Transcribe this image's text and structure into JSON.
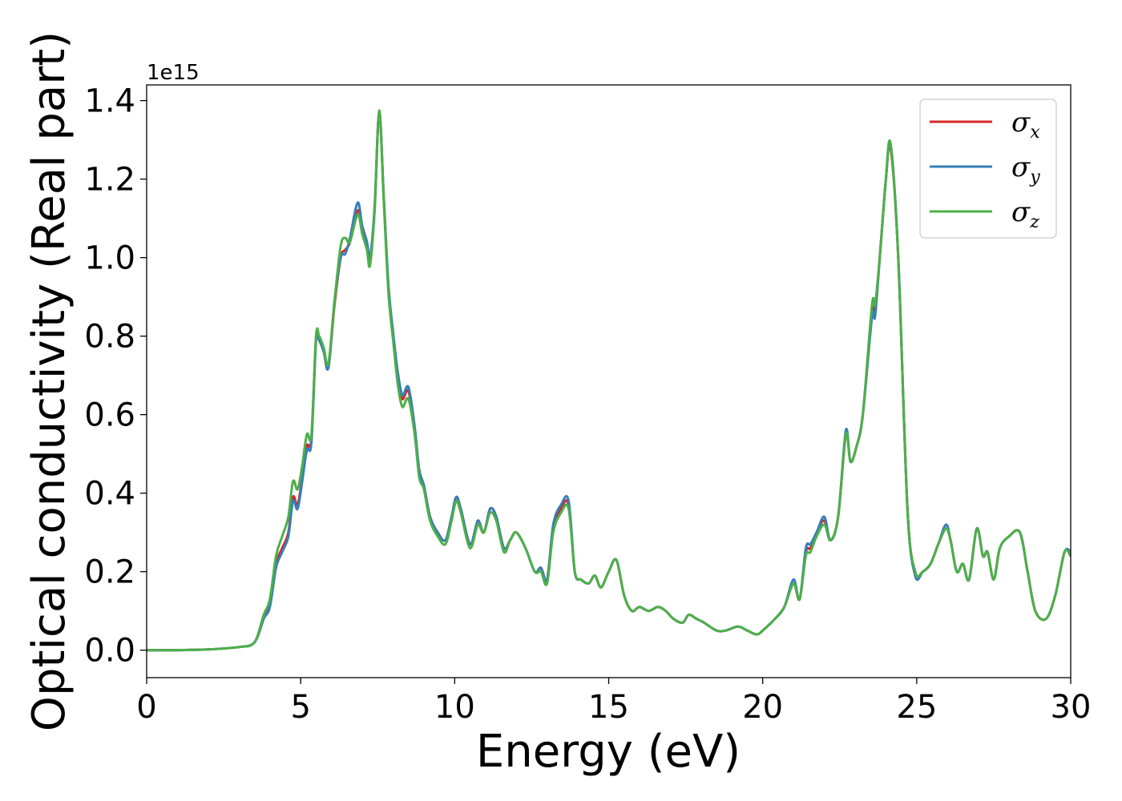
{
  "chart_data": {
    "type": "line",
    "xlabel": "Energy (eV)",
    "ylabel": "Optical conductivity (Real part)",
    "y_offset_label": "1e15",
    "xlim": [
      0,
      30
    ],
    "ylim": [
      -0.07,
      1.44
    ],
    "xticks": [
      0,
      5,
      10,
      15,
      20,
      25,
      30
    ],
    "xtick_labels": [
      "0",
      "5",
      "10",
      "15",
      "20",
      "25",
      "30"
    ],
    "yticks": [
      0.0,
      0.2,
      0.4,
      0.6,
      0.8,
      1.0,
      1.2,
      1.4
    ],
    "ytick_labels": [
      "0.0",
      "0.2",
      "0.4",
      "0.6",
      "0.8",
      "1.0",
      "1.2",
      "1.4"
    ],
    "grid": false,
    "legend_position": "top-right",
    "x": [
      0,
      1,
      2,
      3,
      3.5,
      3.8,
      4.0,
      4.2,
      4.4,
      4.6,
      4.75,
      4.9,
      5.05,
      5.2,
      5.35,
      5.5,
      5.6,
      5.75,
      5.9,
      6.1,
      6.3,
      6.45,
      6.6,
      6.85,
      7.0,
      7.15,
      7.25,
      7.4,
      7.55,
      7.7,
      7.85,
      8.0,
      8.15,
      8.3,
      8.5,
      8.7,
      8.85,
      9.0,
      9.2,
      9.45,
      9.7,
      9.9,
      10.05,
      10.2,
      10.5,
      10.75,
      10.95,
      11.15,
      11.35,
      11.6,
      11.8,
      12.0,
      12.3,
      12.6,
      12.8,
      13.0,
      13.2,
      13.45,
      13.7,
      13.9,
      14.1,
      14.35,
      14.55,
      14.75,
      15.0,
      15.25,
      15.5,
      15.75,
      16.0,
      16.3,
      16.6,
      16.85,
      17.1,
      17.4,
      17.6,
      17.85,
      18.1,
      18.5,
      18.8,
      19.2,
      19.5,
      19.8,
      20.0,
      20.4,
      20.7,
      21.0,
      21.2,
      21.4,
      21.55,
      21.75,
      22.0,
      22.2,
      22.45,
      22.7,
      22.85,
      23.05,
      23.25,
      23.55,
      23.65,
      23.8,
      24.0,
      24.15,
      24.4,
      24.7,
      24.95,
      25.2,
      25.45,
      25.7,
      25.95,
      26.1,
      26.3,
      26.5,
      26.7,
      26.95,
      27.15,
      27.3,
      27.5,
      27.7,
      28.0,
      28.35,
      28.6,
      28.85,
      29.2,
      29.5,
      29.8,
      30.0
    ],
    "series": [
      {
        "name": "σx",
        "color": "#d62728",
        "values": [
          0.0,
          0.0,
          0.002,
          0.008,
          0.02,
          0.08,
          0.12,
          0.22,
          0.26,
          0.3,
          0.39,
          0.37,
          0.44,
          0.52,
          0.54,
          0.8,
          0.79,
          0.76,
          0.72,
          0.88,
          1.0,
          1.02,
          1.04,
          1.12,
          1.08,
          1.04,
          1.0,
          1.12,
          1.37,
          1.15,
          0.92,
          0.8,
          0.7,
          0.64,
          0.66,
          0.56,
          0.45,
          0.42,
          0.34,
          0.3,
          0.28,
          0.34,
          0.39,
          0.36,
          0.27,
          0.32,
          0.3,
          0.36,
          0.34,
          0.26,
          0.28,
          0.3,
          0.26,
          0.2,
          0.21,
          0.18,
          0.31,
          0.36,
          0.37,
          0.2,
          0.18,
          0.17,
          0.19,
          0.16,
          0.2,
          0.23,
          0.14,
          0.1,
          0.11,
          0.1,
          0.11,
          0.1,
          0.08,
          0.07,
          0.09,
          0.08,
          0.07,
          0.05,
          0.05,
          0.06,
          0.05,
          0.04,
          0.05,
          0.08,
          0.11,
          0.17,
          0.13,
          0.25,
          0.26,
          0.3,
          0.33,
          0.28,
          0.34,
          0.55,
          0.48,
          0.52,
          0.6,
          0.86,
          0.86,
          1.0,
          1.2,
          1.28,
          1.0,
          0.36,
          0.2,
          0.2,
          0.22,
          0.27,
          0.31,
          0.28,
          0.2,
          0.22,
          0.18,
          0.31,
          0.24,
          0.25,
          0.18,
          0.26,
          0.29,
          0.3,
          0.2,
          0.1,
          0.08,
          0.14,
          0.25,
          0.24
        ]
      },
      {
        "name": "σy",
        "color": "#377eb8",
        "values": [
          0.0,
          0.0,
          0.002,
          0.008,
          0.02,
          0.08,
          0.11,
          0.21,
          0.25,
          0.29,
          0.38,
          0.36,
          0.43,
          0.51,
          0.53,
          0.79,
          0.79,
          0.76,
          0.72,
          0.89,
          1.0,
          1.01,
          1.05,
          1.14,
          1.08,
          1.04,
          1.0,
          1.13,
          1.37,
          1.15,
          0.93,
          0.81,
          0.71,
          0.65,
          0.67,
          0.57,
          0.46,
          0.42,
          0.34,
          0.3,
          0.28,
          0.34,
          0.39,
          0.36,
          0.27,
          0.33,
          0.3,
          0.36,
          0.34,
          0.26,
          0.28,
          0.3,
          0.26,
          0.2,
          0.21,
          0.18,
          0.32,
          0.37,
          0.38,
          0.2,
          0.18,
          0.17,
          0.19,
          0.16,
          0.2,
          0.23,
          0.14,
          0.1,
          0.11,
          0.1,
          0.11,
          0.1,
          0.08,
          0.07,
          0.09,
          0.08,
          0.07,
          0.05,
          0.05,
          0.06,
          0.05,
          0.04,
          0.05,
          0.08,
          0.11,
          0.18,
          0.13,
          0.26,
          0.27,
          0.3,
          0.34,
          0.28,
          0.34,
          0.56,
          0.48,
          0.52,
          0.6,
          0.85,
          0.85,
          1.0,
          1.2,
          1.29,
          1.0,
          0.36,
          0.19,
          0.2,
          0.22,
          0.27,
          0.32,
          0.28,
          0.2,
          0.22,
          0.18,
          0.31,
          0.24,
          0.25,
          0.18,
          0.26,
          0.29,
          0.3,
          0.2,
          0.1,
          0.08,
          0.14,
          0.25,
          0.25
        ]
      },
      {
        "name": "σz",
        "color": "#4daf4a",
        "values": [
          0.0,
          0.0,
          0.002,
          0.008,
          0.02,
          0.09,
          0.13,
          0.24,
          0.29,
          0.34,
          0.43,
          0.41,
          0.47,
          0.55,
          0.55,
          0.8,
          0.8,
          0.77,
          0.73,
          0.89,
          1.03,
          1.05,
          1.04,
          1.11,
          1.06,
          1.02,
          0.98,
          1.12,
          1.375,
          1.14,
          0.91,
          0.79,
          0.68,
          0.62,
          0.64,
          0.55,
          0.44,
          0.41,
          0.33,
          0.29,
          0.27,
          0.33,
          0.38,
          0.35,
          0.26,
          0.32,
          0.3,
          0.35,
          0.33,
          0.25,
          0.28,
          0.3,
          0.26,
          0.2,
          0.2,
          0.17,
          0.3,
          0.35,
          0.36,
          0.2,
          0.18,
          0.17,
          0.19,
          0.16,
          0.2,
          0.23,
          0.14,
          0.1,
          0.11,
          0.1,
          0.11,
          0.1,
          0.08,
          0.07,
          0.09,
          0.08,
          0.07,
          0.05,
          0.05,
          0.06,
          0.05,
          0.04,
          0.05,
          0.08,
          0.11,
          0.17,
          0.13,
          0.24,
          0.25,
          0.29,
          0.32,
          0.28,
          0.34,
          0.55,
          0.48,
          0.52,
          0.6,
          0.88,
          0.88,
          1.0,
          1.2,
          1.29,
          1.0,
          0.36,
          0.2,
          0.2,
          0.22,
          0.27,
          0.31,
          0.28,
          0.2,
          0.22,
          0.18,
          0.31,
          0.24,
          0.25,
          0.18,
          0.26,
          0.29,
          0.3,
          0.2,
          0.1,
          0.08,
          0.14,
          0.25,
          0.24
        ]
      }
    ]
  },
  "legend": {
    "items": [
      {
        "symbol": "σ",
        "sub": "x",
        "color": "#d62728"
      },
      {
        "symbol": "σ",
        "sub": "y",
        "color": "#377eb8"
      },
      {
        "symbol": "σ",
        "sub": "z",
        "color": "#4daf4a"
      }
    ]
  }
}
